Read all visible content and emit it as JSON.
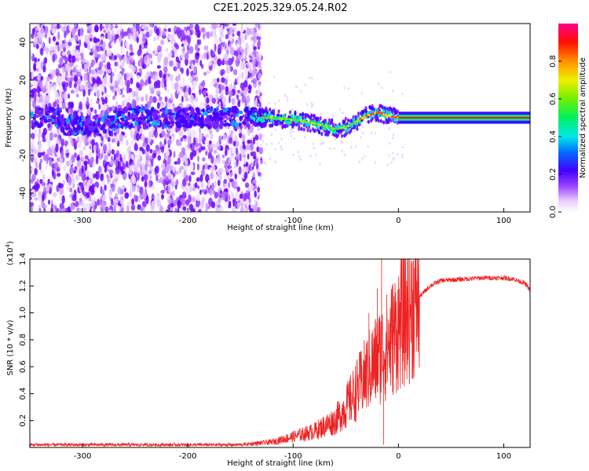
{
  "chart_data": [
    {
      "type": "heatmap",
      "title": "C2E1.2025.329.05.24.R02",
      "xlabel": "Height of straight line (km)",
      "ylabel": "Frequency (Hz)",
      "xlim": [
        -350,
        125
      ],
      "ylim": [
        -50,
        50
      ],
      "xticks": [
        -300,
        -200,
        -100,
        0,
        100
      ],
      "xtick_labels": [
        "-300",
        "-200",
        "-100",
        "0",
        "100"
      ],
      "yticks": [
        -40,
        -20,
        0,
        20,
        40
      ],
      "ytick_labels": [
        "-40",
        "-20",
        "0",
        "20",
        "40"
      ],
      "colorbar": {
        "label": "Normalized spectral amplitude",
        "range": [
          0.0,
          1.0
        ],
        "ticks": [
          0.0,
          0.2,
          0.4,
          0.6,
          0.8
        ],
        "tick_labels": [
          "0.0",
          "0.2",
          "0.4",
          "0.6",
          "0.8"
        ]
      },
      "ridge": {
        "x": [
          -140,
          -120,
          -100,
          -80,
          -60,
          -50,
          -40,
          -30,
          -20,
          -10,
          0,
          125
        ],
        "freq": [
          0,
          0,
          -1,
          -3,
          -6,
          -5,
          -2,
          1,
          3,
          1,
          0,
          0
        ]
      },
      "noise_region_x": [
        -350,
        -135
      ]
    },
    {
      "type": "line",
      "xlabel": "Height of straight line (km)",
      "ylabel": "SNR (10 * v/v)",
      "y_multiplier_label": "(x10",
      "y_multiplier_exp": "4",
      "y_multiplier_close": ")",
      "xlim": [
        -350,
        125
      ],
      "ylim": [
        0.0,
        1.4
      ],
      "xticks": [
        -300,
        -200,
        -100,
        0,
        100
      ],
      "xtick_labels": [
        "-300",
        "-200",
        "-100",
        "0",
        "100"
      ],
      "yticks": [
        0.2,
        0.4,
        0.6,
        0.8,
        1.0,
        1.2,
        1.4
      ],
      "ytick_labels": [
        "0.2",
        "0.4",
        "0.6",
        "0.8",
        "1.0",
        "1.2",
        "1.4"
      ],
      "series_color": "#ee2222",
      "envelope": {
        "x": [
          -350,
          -150,
          -120,
          -100,
          -80,
          -60,
          -50,
          -40,
          -30,
          -20,
          -10,
          0,
          10,
          20,
          30,
          40,
          60,
          80,
          100,
          110,
          120,
          125
        ],
        "y": [
          0.02,
          0.02,
          0.04,
          0.08,
          0.12,
          0.2,
          0.3,
          0.42,
          0.55,
          0.66,
          0.76,
          0.9,
          1.03,
          1.12,
          1.2,
          1.24,
          1.25,
          1.26,
          1.26,
          1.25,
          1.22,
          1.17
        ]
      },
      "spikes": [
        {
          "x": -16,
          "y": 1.4
        },
        {
          "x": -20,
          "y": 1.18
        },
        {
          "x": -28,
          "y": 1.0
        },
        {
          "x": -14,
          "y": 0.02
        }
      ]
    }
  ]
}
